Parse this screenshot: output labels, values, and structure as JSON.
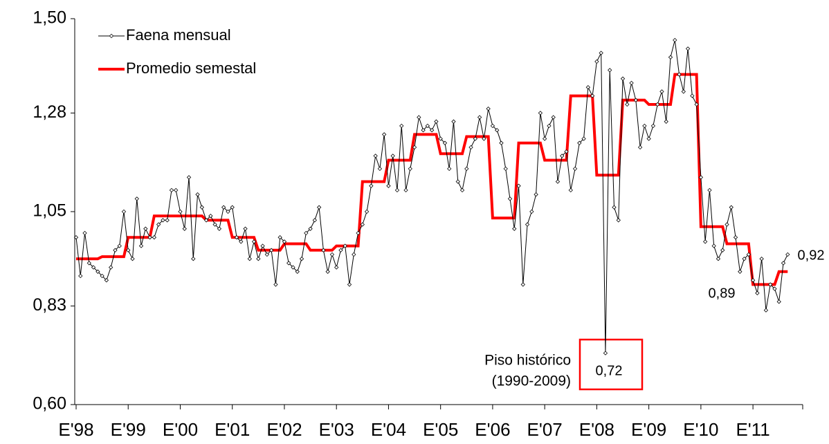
{
  "chart_data": {
    "type": "line",
    "categories": [
      "E'98",
      null,
      null,
      null,
      null,
      null,
      null,
      null,
      null,
      null,
      null,
      null,
      "E'99",
      null,
      null,
      null,
      null,
      null,
      null,
      null,
      null,
      null,
      null,
      null,
      "E'00",
      null,
      null,
      null,
      null,
      null,
      null,
      null,
      null,
      null,
      null,
      null,
      "E'01",
      null,
      null,
      null,
      null,
      null,
      null,
      null,
      null,
      null,
      null,
      null,
      "E'02",
      null,
      null,
      null,
      null,
      null,
      null,
      null,
      null,
      null,
      null,
      null,
      "E'03",
      null,
      null,
      null,
      null,
      null,
      null,
      null,
      null,
      null,
      null,
      null,
      "E'04",
      null,
      null,
      null,
      null,
      null,
      null,
      null,
      null,
      null,
      null,
      null,
      "E'05",
      null,
      null,
      null,
      null,
      null,
      null,
      null,
      null,
      null,
      null,
      null,
      "E'06",
      null,
      null,
      null,
      null,
      null,
      null,
      null,
      null,
      null,
      null,
      null,
      "E'07",
      null,
      null,
      null,
      null,
      null,
      null,
      null,
      null,
      null,
      null,
      null,
      "E'08",
      null,
      null,
      null,
      null,
      null,
      null,
      null,
      null,
      null,
      null,
      null,
      "E'09",
      null,
      null,
      null,
      null,
      null,
      null,
      null,
      null,
      null,
      null,
      null,
      "E'10",
      null,
      null,
      null,
      null,
      null,
      null,
      null,
      null,
      null,
      null,
      null,
      "E'11",
      null,
      null,
      null,
      null,
      null,
      null,
      null,
      null
    ],
    "series": [
      {
        "name": "Faena mensual",
        "color": "#000000",
        "marker": "diamond",
        "values": [
          0.99,
          0.9,
          1.0,
          0.93,
          0.92,
          0.91,
          0.9,
          0.89,
          0.92,
          0.96,
          0.97,
          1.05,
          0.96,
          0.94,
          1.08,
          0.97,
          1.01,
          0.99,
          0.99,
          1.02,
          1.03,
          1.03,
          1.1,
          1.1,
          1.05,
          1.01,
          1.13,
          0.94,
          1.09,
          1.06,
          1.03,
          1.04,
          1.02,
          1.01,
          1.06,
          1.05,
          1.06,
          0.99,
          0.98,
          1.01,
          0.94,
          0.98,
          0.94,
          0.97,
          0.95,
          0.96,
          0.88,
          0.99,
          0.98,
          0.93,
          0.92,
          0.91,
          0.94,
          1.0,
          1.01,
          1.03,
          1.06,
          0.96,
          0.91,
          0.95,
          0.92,
          0.96,
          0.97,
          0.88,
          0.95,
          1.0,
          1.02,
          1.05,
          1.11,
          1.18,
          1.15,
          1.23,
          1.11,
          1.18,
          1.1,
          1.25,
          1.1,
          1.15,
          1.2,
          1.27,
          1.24,
          1.25,
          1.24,
          1.26,
          1.22,
          1.21,
          1.15,
          1.26,
          1.12,
          1.1,
          1.15,
          1.2,
          1.22,
          1.27,
          1.22,
          1.29,
          1.25,
          1.24,
          1.21,
          1.15,
          1.08,
          1.01,
          1.11,
          0.88,
          1.02,
          1.05,
          1.09,
          1.28,
          1.22,
          1.25,
          1.27,
          1.12,
          1.18,
          1.19,
          1.1,
          1.15,
          1.21,
          1.22,
          1.34,
          1.32,
          1.4,
          1.42,
          0.72,
          1.38,
          1.06,
          1.03,
          1.36,
          1.3,
          1.35,
          1.31,
          1.2,
          1.25,
          1.22,
          1.25,
          1.3,
          1.33,
          1.26,
          1.41,
          1.45,
          1.37,
          1.33,
          1.43,
          1.32,
          1.3,
          1.13,
          0.98,
          1.1,
          0.97,
          0.94,
          0.96,
          1.02,
          1.06,
          0.99,
          0.91,
          0.94,
          0.95,
          0.89,
          0.86,
          0.94,
          0.82,
          0.88,
          0.87,
          0.84,
          0.93,
          0.95
        ]
      },
      {
        "name": "Promedio semestal",
        "color": "#ff0000",
        "values": [
          0.94,
          0.94,
          0.94,
          0.94,
          0.94,
          0.94,
          0.945,
          0.945,
          0.945,
          0.945,
          0.945,
          0.945,
          0.99,
          0.99,
          0.99,
          0.99,
          0.99,
          0.99,
          1.04,
          1.04,
          1.04,
          1.04,
          1.04,
          1.04,
          1.04,
          1.04,
          1.04,
          1.04,
          1.04,
          1.04,
          1.03,
          1.03,
          1.03,
          1.03,
          1.03,
          1.03,
          0.99,
          0.99,
          0.99,
          0.99,
          0.99,
          0.99,
          0.96,
          0.96,
          0.96,
          0.96,
          0.96,
          0.96,
          0.975,
          0.975,
          0.975,
          0.975,
          0.975,
          0.975,
          0.96,
          0.96,
          0.96,
          0.96,
          0.96,
          0.96,
          0.97,
          0.97,
          0.97,
          0.97,
          0.97,
          0.97,
          1.12,
          1.12,
          1.12,
          1.12,
          1.12,
          1.12,
          1.17,
          1.17,
          1.17,
          1.17,
          1.17,
          1.17,
          1.23,
          1.23,
          1.23,
          1.23,
          1.23,
          1.23,
          1.185,
          1.185,
          1.185,
          1.185,
          1.185,
          1.185,
          1.225,
          1.225,
          1.225,
          1.225,
          1.225,
          1.225,
          1.035,
          1.035,
          1.035,
          1.035,
          1.035,
          1.035,
          1.21,
          1.21,
          1.21,
          1.21,
          1.21,
          1.21,
          1.17,
          1.17,
          1.17,
          1.17,
          1.17,
          1.17,
          1.32,
          1.32,
          1.32,
          1.32,
          1.32,
          1.32,
          1.135,
          1.135,
          1.135,
          1.135,
          1.135,
          1.135,
          1.31,
          1.31,
          1.31,
          1.31,
          1.31,
          1.31,
          1.3,
          1.3,
          1.3,
          1.3,
          1.3,
          1.3,
          1.37,
          1.37,
          1.37,
          1.37,
          1.37,
          1.37,
          1.015,
          1.015,
          1.015,
          1.015,
          1.015,
          1.015,
          0.975,
          0.975,
          0.975,
          0.975,
          0.975,
          0.975,
          0.88,
          0.88,
          0.88,
          0.88,
          0.88,
          0.88,
          0.91,
          0.91,
          0.91
        ]
      }
    ],
    "ylim": [
      0.6,
      1.5
    ],
    "yticks": [
      {
        "value": 0.6,
        "label": "0,60"
      },
      {
        "value": 0.83,
        "label": "0,83"
      },
      {
        "value": 1.05,
        "label": "1,05"
      },
      {
        "value": 1.28,
        "label": "1,28"
      },
      {
        "value": 1.5,
        "label": "1,50"
      }
    ],
    "legend": "top-left",
    "annotations": [
      "Piso histórico",
      "(1990-2009)",
      "0,72",
      "0,89",
      "0,92"
    ]
  }
}
